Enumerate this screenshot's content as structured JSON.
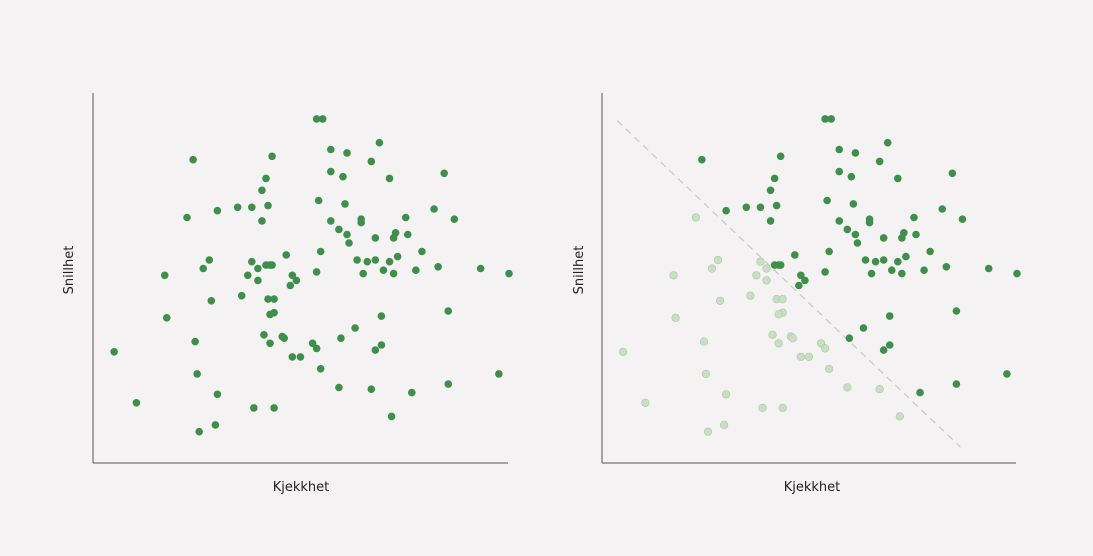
{
  "colors": {
    "background": "#f4f2f3",
    "point": "#3f8f4b",
    "point_faded": "#c9dfc4",
    "point_faded_stroke": "#a9c9a4",
    "divider": "#c8c8c8"
  },
  "chart_data": [
    {
      "type": "scatter",
      "xlabel": "Kjekkhet",
      "ylabel": "Snillhet",
      "xlim": [
        0,
        100
      ],
      "ylim": [
        0,
        100
      ],
      "grid": false,
      "points": [
        [
          52.5,
          96.5
        ],
        [
          54,
          96.5
        ],
        [
          56,
          87.5
        ],
        [
          60,
          86.5
        ],
        [
          68,
          89.5
        ],
        [
          22,
          84.5
        ],
        [
          41.5,
          85.5
        ],
        [
          66,
          84
        ],
        [
          56,
          81
        ],
        [
          59,
          79.5
        ],
        [
          70.5,
          79
        ],
        [
          84,
          80.5
        ],
        [
          40,
          79
        ],
        [
          39,
          75.5
        ],
        [
          53,
          72.5
        ],
        [
          59.5,
          71.5
        ],
        [
          40.5,
          71
        ],
        [
          36.5,
          70.5
        ],
        [
          33,
          70.5
        ],
        [
          28,
          69.5
        ],
        [
          81.5,
          70
        ],
        [
          74.5,
          67.5
        ],
        [
          20.5,
          67.5
        ],
        [
          39,
          66.5
        ],
        [
          56,
          66.5
        ],
        [
          63.5,
          67
        ],
        [
          63.5,
          66
        ],
        [
          86.5,
          67
        ],
        [
          75,
          62.5
        ],
        [
          72,
          63
        ],
        [
          71.5,
          61.5
        ],
        [
          67,
          61.5
        ],
        [
          60,
          62.5
        ],
        [
          60.5,
          60
        ],
        [
          58,
          64
        ],
        [
          45,
          56.5
        ],
        [
          53.5,
          57.5
        ],
        [
          78.5,
          57.5
        ],
        [
          72.5,
          56
        ],
        [
          26,
          55
        ],
        [
          36.5,
          54.5
        ],
        [
          41,
          53.5
        ],
        [
          40,
          53.5
        ],
        [
          38,
          52.5
        ],
        [
          41.5,
          53.5
        ],
        [
          24.5,
          52.5
        ],
        [
          62.5,
          55
        ],
        [
          65,
          54.5
        ],
        [
          67,
          55
        ],
        [
          69,
          52
        ],
        [
          70.5,
          54.5
        ],
        [
          77,
          52
        ],
        [
          82.5,
          53
        ],
        [
          64,
          51
        ],
        [
          71.5,
          51
        ],
        [
          52.5,
          51.5
        ],
        [
          93,
          52.5
        ],
        [
          100,
          51
        ],
        [
          15,
          50.5
        ],
        [
          35.5,
          50.5
        ],
        [
          38,
          49
        ],
        [
          46.5,
          50.5
        ],
        [
          47.5,
          49
        ],
        [
          46,
          47.5
        ],
        [
          34,
          44.5
        ],
        [
          40.5,
          43.5
        ],
        [
          42,
          43.5
        ],
        [
          26.5,
          43
        ],
        [
          42,
          39.5
        ],
        [
          41,
          39
        ],
        [
          15.5,
          38
        ],
        [
          85,
          40
        ],
        [
          68.5,
          38.5
        ],
        [
          62,
          35
        ],
        [
          39.5,
          33
        ],
        [
          44,
          32.5
        ],
        [
          44.5,
          32
        ],
        [
          58.5,
          32
        ],
        [
          22.5,
          31
        ],
        [
          41,
          30.5
        ],
        [
          51.5,
          30.5
        ],
        [
          52.5,
          29
        ],
        [
          68.5,
          30
        ],
        [
          67,
          28.5
        ],
        [
          2.5,
          28
        ],
        [
          46.5,
          26.5
        ],
        [
          48.5,
          26.5
        ],
        [
          53.5,
          23
        ],
        [
          23,
          21.5
        ],
        [
          85,
          18.5
        ],
        [
          97.5,
          21.5
        ],
        [
          58,
          17.5
        ],
        [
          66,
          17
        ],
        [
          76,
          16
        ],
        [
          28,
          15.5
        ],
        [
          37,
          11.5
        ],
        [
          42,
          11.5
        ],
        [
          8,
          13
        ],
        [
          71,
          9
        ],
        [
          27.5,
          6.5
        ],
        [
          23.5,
          4.5
        ]
      ]
    },
    {
      "type": "scatter",
      "xlabel": "Kjekkhet",
      "ylabel": "Snillhet",
      "xlim": [
        0,
        100
      ],
      "ylim": [
        0,
        100
      ],
      "grid": false,
      "divider_line": {
        "from": [
          1,
          96
        ],
        "to": [
          86,
          0
        ],
        "style": "dashed"
      },
      "points": [
        [
          52.5,
          96.5
        ],
        [
          54,
          96.5
        ],
        [
          56,
          87.5
        ],
        [
          60,
          86.5
        ],
        [
          68,
          89.5
        ],
        [
          22,
          84.5
        ],
        [
          41.5,
          85.5
        ],
        [
          66,
          84
        ],
        [
          56,
          81
        ],
        [
          59,
          79.5
        ],
        [
          70.5,
          79
        ],
        [
          84,
          80.5
        ],
        [
          40,
          79
        ],
        [
          39,
          75.5
        ],
        [
          53,
          72.5
        ],
        [
          59.5,
          71.5
        ],
        [
          40.5,
          71
        ],
        [
          36.5,
          70.5
        ],
        [
          33,
          70.5
        ],
        [
          28,
          69.5
        ],
        [
          81.5,
          70
        ],
        [
          74.5,
          67.5
        ],
        [
          20.5,
          67.5
        ],
        [
          39,
          66.5
        ],
        [
          56,
          66.5
        ],
        [
          63.5,
          67
        ],
        [
          63.5,
          66
        ],
        [
          86.5,
          67
        ],
        [
          75,
          62.5
        ],
        [
          72,
          63
        ],
        [
          71.5,
          61.5
        ],
        [
          67,
          61.5
        ],
        [
          60,
          62.5
        ],
        [
          60.5,
          60
        ],
        [
          58,
          64
        ],
        [
          45,
          56.5
        ],
        [
          53.5,
          57.5
        ],
        [
          78.5,
          57.5
        ],
        [
          72.5,
          56
        ],
        [
          26,
          55
        ],
        [
          36.5,
          54.5
        ],
        [
          41,
          53.5
        ],
        [
          40,
          53.5
        ],
        [
          38,
          52.5
        ],
        [
          41.5,
          53.5
        ],
        [
          24.5,
          52.5
        ],
        [
          62.5,
          55
        ],
        [
          65,
          54.5
        ],
        [
          67,
          55
        ],
        [
          69,
          52
        ],
        [
          70.5,
          54.5
        ],
        [
          77,
          52
        ],
        [
          82.5,
          53
        ],
        [
          64,
          51
        ],
        [
          71.5,
          51
        ],
        [
          52.5,
          51.5
        ],
        [
          93,
          52.5
        ],
        [
          100,
          51
        ],
        [
          15,
          50.5
        ],
        [
          35.5,
          50.5
        ],
        [
          38,
          49
        ],
        [
          46.5,
          50.5
        ],
        [
          47.5,
          49
        ],
        [
          46,
          47.5
        ],
        [
          34,
          44.5
        ],
        [
          40.5,
          43.5
        ],
        [
          42,
          43.5
        ],
        [
          26.5,
          43
        ],
        [
          42,
          39.5
        ],
        [
          41,
          39
        ],
        [
          15.5,
          38
        ],
        [
          85,
          40
        ],
        [
          68.5,
          38.5
        ],
        [
          62,
          35
        ],
        [
          39.5,
          33
        ],
        [
          44,
          32.5
        ],
        [
          44.5,
          32
        ],
        [
          58.5,
          32
        ],
        [
          22.5,
          31
        ],
        [
          41,
          30.5
        ],
        [
          51.5,
          30.5
        ],
        [
          52.5,
          29
        ],
        [
          68.5,
          30
        ],
        [
          67,
          28.5
        ],
        [
          2.5,
          28
        ],
        [
          46.5,
          26.5
        ],
        [
          48.5,
          26.5
        ],
        [
          53.5,
          23
        ],
        [
          23,
          21.5
        ],
        [
          85,
          18.5
        ],
        [
          97.5,
          21.5
        ],
        [
          58,
          17.5
        ],
        [
          66,
          17
        ],
        [
          76,
          16
        ],
        [
          28,
          15.5
        ],
        [
          37,
          11.5
        ],
        [
          42,
          11.5
        ],
        [
          8,
          13
        ],
        [
          71,
          9
        ],
        [
          27.5,
          6.5
        ],
        [
          23.5,
          4.5
        ]
      ]
    }
  ]
}
